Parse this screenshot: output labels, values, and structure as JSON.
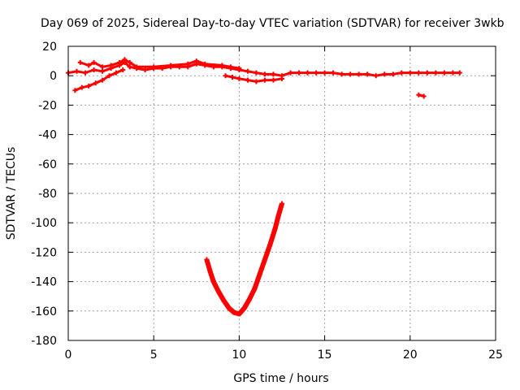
{
  "chart_data": {
    "type": "scatter",
    "title": "Day 069 of 2025, Sidereal Day-to-day VTEC variation (SDTVAR) for receiver 3wkb",
    "xlabel": "GPS time / hours",
    "ylabel": "SDTVAR / TECUs",
    "xlim": [
      0,
      25
    ],
    "ylim": [
      -180,
      20
    ],
    "xticks": [
      0,
      5,
      10,
      15,
      20,
      25
    ],
    "yticks": [
      20,
      0,
      -20,
      -40,
      -60,
      -80,
      -100,
      -120,
      -140,
      -160,
      -180
    ],
    "grid": true,
    "color": "#ff0000",
    "series": [
      {
        "name": "main-band",
        "points": [
          [
            0,
            2
          ],
          [
            0.5,
            3
          ],
          [
            1,
            2
          ],
          [
            1.5,
            4
          ],
          [
            2,
            3
          ],
          [
            2.5,
            5
          ],
          [
            3,
            7
          ],
          [
            3.3,
            9
          ],
          [
            3.6,
            6
          ],
          [
            4,
            5
          ],
          [
            4.5,
            4
          ],
          [
            5,
            5
          ],
          [
            5.5,
            5
          ],
          [
            6,
            6
          ],
          [
            6.5,
            6
          ],
          [
            7,
            6
          ],
          [
            7.5,
            8
          ],
          [
            8,
            7
          ],
          [
            8.5,
            6
          ],
          [
            9,
            6
          ],
          [
            9.5,
            5
          ],
          [
            10,
            4
          ],
          [
            10.5,
            3
          ],
          [
            11,
            2
          ],
          [
            11.5,
            1
          ],
          [
            12,
            1
          ],
          [
            12.5,
            0
          ],
          [
            13,
            2
          ],
          [
            13.5,
            2
          ],
          [
            14,
            2
          ],
          [
            14.5,
            2
          ],
          [
            15,
            2
          ],
          [
            15.5,
            2
          ],
          [
            16,
            1
          ],
          [
            16.5,
            1
          ],
          [
            17,
            1
          ],
          [
            17.5,
            1
          ],
          [
            18,
            0
          ],
          [
            18.5,
            1
          ],
          [
            19,
            1
          ],
          [
            19.5,
            2
          ],
          [
            20,
            2
          ],
          [
            20.5,
            2
          ],
          [
            21,
            2
          ],
          [
            21.5,
            2
          ],
          [
            22,
            2
          ],
          [
            22.5,
            2
          ],
          [
            22.9,
            2
          ]
        ]
      },
      {
        "name": "upper-band",
        "points": [
          [
            0.7,
            9
          ],
          [
            1.2,
            7
          ],
          [
            1.5,
            9
          ],
          [
            2,
            6
          ],
          [
            2.5,
            7
          ],
          [
            3,
            9
          ],
          [
            3.3,
            11
          ],
          [
            3.6,
            9
          ],
          [
            4,
            6
          ],
          [
            5,
            6
          ],
          [
            6,
            7
          ],
          [
            7,
            8
          ],
          [
            7.5,
            10
          ],
          [
            8,
            8
          ],
          [
            9,
            7
          ],
          [
            9.5,
            6
          ],
          [
            10,
            5
          ]
        ]
      },
      {
        "name": "lower-band",
        "points": [
          [
            9.2,
            0
          ],
          [
            9.6,
            -1
          ],
          [
            10,
            -2
          ],
          [
            10.5,
            -3
          ],
          [
            11,
            -4
          ],
          [
            11.5,
            -3
          ],
          [
            12,
            -3
          ],
          [
            12.5,
            -2
          ]
        ]
      },
      {
        "name": "rising-arc",
        "points": [
          [
            0.4,
            -10
          ],
          [
            0.8,
            -8
          ],
          [
            1.2,
            -7
          ],
          [
            1.6,
            -5
          ],
          [
            2,
            -3
          ],
          [
            2.4,
            0
          ],
          [
            2.8,
            2
          ],
          [
            3.2,
            4
          ]
        ]
      },
      {
        "name": "isolated-segment",
        "points": [
          [
            20.5,
            -13
          ],
          [
            20.8,
            -14
          ]
        ]
      },
      {
        "name": "deep-dip",
        "points": [
          [
            8.1,
            -125
          ],
          [
            8.3,
            -133
          ],
          [
            8.5,
            -140
          ],
          [
            8.8,
            -147
          ],
          [
            9.1,
            -153
          ],
          [
            9.4,
            -158
          ],
          [
            9.7,
            -161
          ],
          [
            10.0,
            -162
          ],
          [
            10.3,
            -158
          ],
          [
            10.6,
            -152
          ],
          [
            10.9,
            -145
          ],
          [
            11.2,
            -135
          ],
          [
            11.5,
            -125
          ],
          [
            11.8,
            -115
          ],
          [
            12.1,
            -104
          ],
          [
            12.3,
            -95
          ],
          [
            12.5,
            -87
          ]
        ]
      }
    ]
  }
}
